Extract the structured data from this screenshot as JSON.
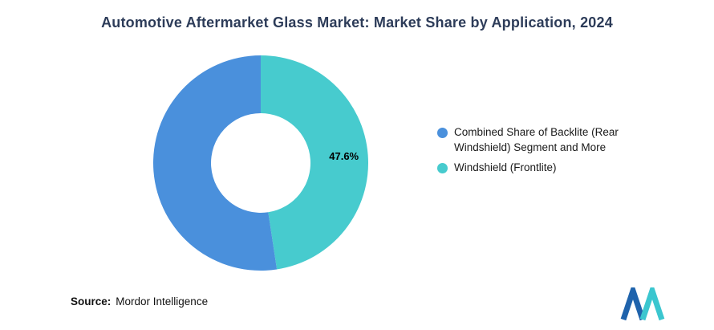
{
  "title": "Automotive Aftermarket Glass Market: Market Share by Application, 2024",
  "chart_data": {
    "type": "pie",
    "donut": true,
    "start_angle_deg": 0,
    "direction": "clockwise-from-top",
    "slices": [
      {
        "label": "Windshield (Frontlite)",
        "value": 47.6,
        "color": "#47CBCE",
        "data_label": "47.6%"
      },
      {
        "label": "Combined Share of Backlite (Rear Windshield) Segment and More",
        "value": 52.4,
        "color": "#4A90DC",
        "data_label": ""
      }
    ],
    "legend": [
      {
        "label": "Combined Share of Backlite (Rear Windshield) Segment and More",
        "color": "#4A90DC"
      },
      {
        "label": "Windshield (Frontlite)",
        "color": "#47CBCE"
      }
    ],
    "legend_position": "right",
    "title": "Automotive Aftermarket Glass Market: Market Share by Application, 2024"
  },
  "source": {
    "prefix": "Source:",
    "text": "Mordor Intelligence"
  },
  "colors": {
    "title": "#2d3c59",
    "background": "#ffffff",
    "data_label": "#000000",
    "logo_blue": "#1f63ac",
    "logo_teal": "#3bc6cf"
  }
}
